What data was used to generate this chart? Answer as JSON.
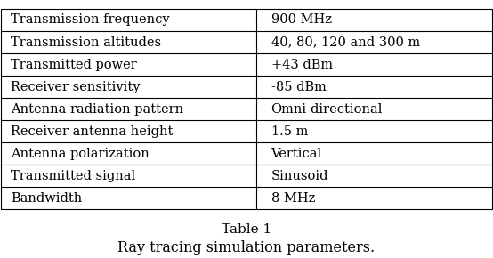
{
  "rows": [
    [
      "Transmission frequency",
      "900 MHz"
    ],
    [
      "Transmission altitudes",
      "40, 80, 120 and 300 m"
    ],
    [
      "Transmitted power",
      "+43 dBm"
    ],
    [
      "Receiver sensitivity",
      "-85 dBm"
    ],
    [
      "Antenna radiation pattern",
      "Omni-directional"
    ],
    [
      "Receiver antenna height",
      "1.5 m"
    ],
    [
      "Antenna polarization",
      "Vertical"
    ],
    [
      "Transmitted signal",
      "Sinusoid"
    ],
    [
      "Bandwidth",
      "8 MHz"
    ]
  ],
  "table_label": "Table 1",
  "caption": "Ray tracing simulation parameters.",
  "col_split": 0.52,
  "bg_color": "#ffffff",
  "border_color": "#000000",
  "text_color": "#000000",
  "font_size": 10.5,
  "caption_font_size": 11.5,
  "label_font_size": 11.0
}
